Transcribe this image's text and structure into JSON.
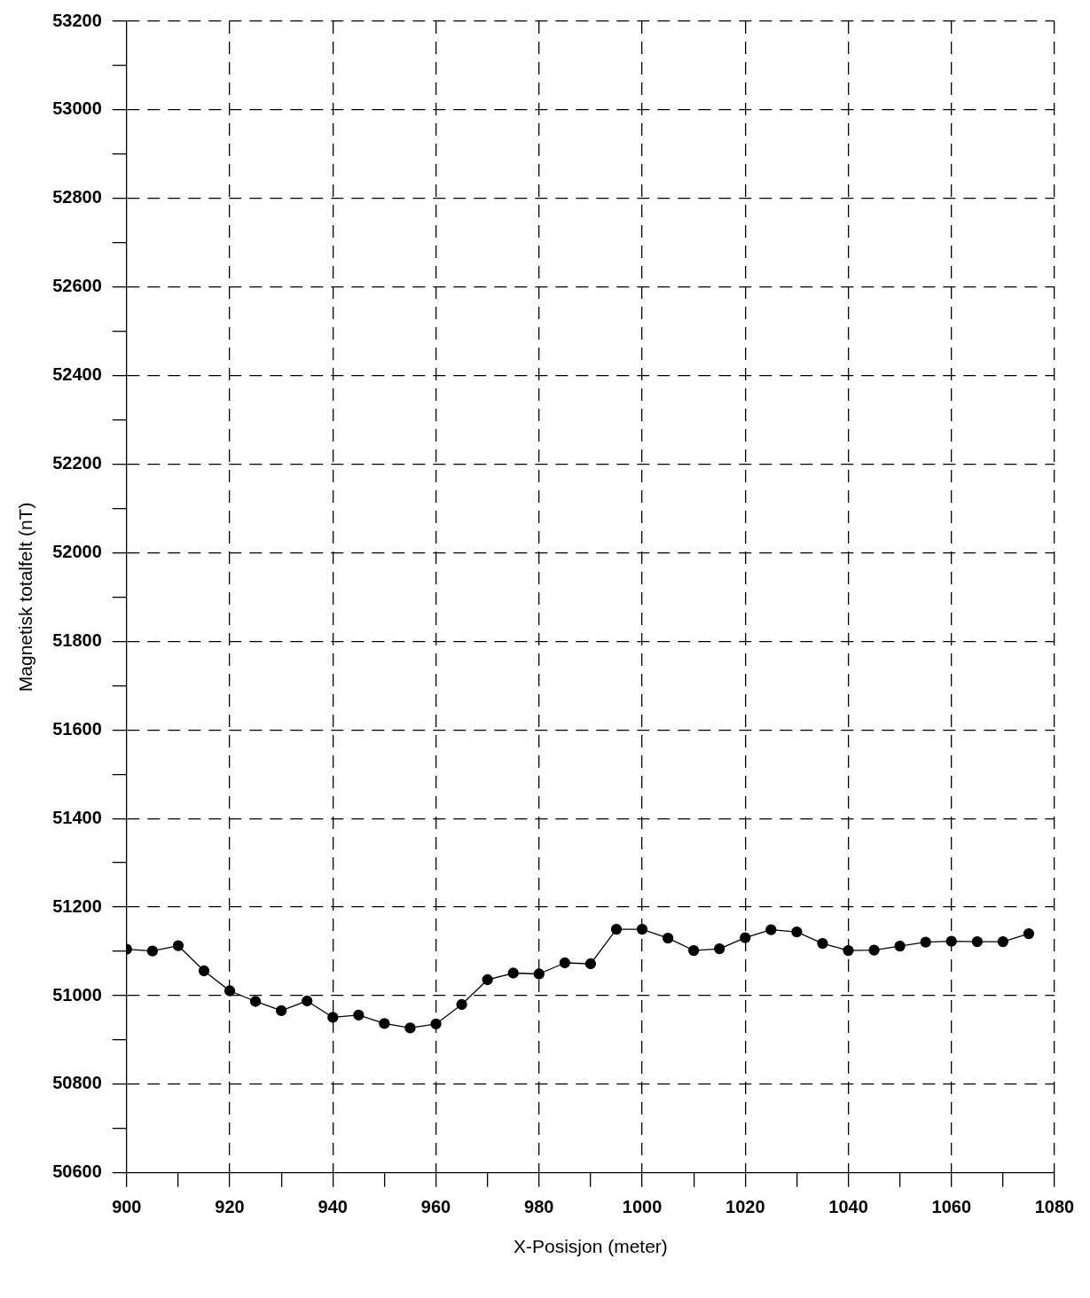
{
  "chart_data": {
    "type": "line",
    "xlabel": "X-Posisjon (meter)",
    "ylabel": "Magnetisk totalfelt (nT)",
    "x": [
      900,
      905,
      910,
      915,
      920,
      925,
      930,
      935,
      940,
      945,
      950,
      955,
      960,
      965,
      970,
      975,
      980,
      985,
      990,
      995,
      1000,
      1005,
      1010,
      1015,
      1020,
      1025,
      1030,
      1035,
      1040,
      1045,
      1050,
      1055,
      1060,
      1065,
      1070,
      1075
    ],
    "series": [
      {
        "color": "#000000",
        "values": [
          51105,
          51101,
          51113,
          51056,
          51011,
          50987,
          50966,
          50988,
          50951,
          50956,
          50937,
          50927,
          50936,
          50980,
          51036,
          51051,
          51049,
          51074,
          51072,
          51150,
          51150,
          51130,
          51102,
          51106,
          51131,
          51149,
          51144,
          51118,
          51102,
          51103,
          51112,
          51121,
          51123,
          51122,
          51122,
          51140
        ]
      }
    ],
    "xlim": [
      900,
      1080
    ],
    "xticks": [
      900,
      {
        "value": 910,
        "label": null
      },
      920,
      {
        "value": 930,
        "label": null
      },
      940,
      {
        "value": 950,
        "label": null
      },
      960,
      {
        "value": 970,
        "label": null
      },
      980,
      {
        "value": 990,
        "label": null
      },
      1000,
      {
        "value": 1010,
        "label": null
      },
      1020,
      {
        "value": 1030,
        "label": null
      },
      1040,
      {
        "value": 1050,
        "label": null
      },
      1060,
      {
        "value": 1070,
        "label": null
      },
      1080
    ],
    "ylim": [
      50600,
      53200
    ],
    "yticks": [
      50600,
      {
        "value": 50700,
        "label": null
      },
      50800,
      {
        "value": 50900,
        "label": null
      },
      51000,
      {
        "value": 51100,
        "label": null
      },
      51200,
      {
        "value": 51300,
        "label": null
      },
      51400,
      {
        "value": 51500,
        "label": null
      },
      51600,
      {
        "value": 51700,
        "label": null
      },
      51800,
      {
        "value": 51900,
        "label": null
      },
      52000,
      {
        "value": 52100,
        "label": null
      },
      52200,
      {
        "value": 52300,
        "label": null
      },
      52400,
      {
        "value": 52500,
        "label": null
      },
      52600,
      {
        "value": 52700,
        "label": null
      },
      52800,
      {
        "value": 52900,
        "label": null
      },
      53000,
      {
        "value": 53100,
        "label": null
      },
      53200
    ],
    "grid": true,
    "marker": "circle",
    "line_style": "solid",
    "legend": false
  }
}
